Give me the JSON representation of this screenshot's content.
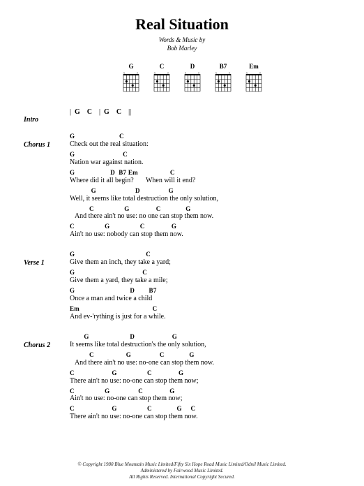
{
  "title": {
    "text": "Real Situation",
    "fontsize": 22
  },
  "byline": {
    "text": "Words & Music by",
    "fontsize": 9
  },
  "author": {
    "text": "Bob Marley",
    "fontsize": 9
  },
  "chord_diagrams": [
    {
      "name": "G"
    },
    {
      "name": "C"
    },
    {
      "name": "D"
    },
    {
      "name": "B7"
    },
    {
      "name": "Em"
    }
  ],
  "sections": [
    {
      "label": "Intro",
      "type": "intro",
      "intro_text": "|  G    C    |  G    C    ||"
    },
    {
      "label": "Chorus 1",
      "type": "lyrics",
      "lines": [
        {
          "chords": "G                         C",
          "lyrics": "Check out the real situation:"
        },
        {
          "chords": "G                           C",
          "lyrics": "Nation war against nation."
        },
        {
          "chords": "G                    D  B7 Em                  C",
          "lyrics": "Where did it all begin?       When will it end?"
        },
        {
          "chords": "            G                      D                G",
          "lyrics": "Well, it seems like total destruction the only solution,"
        },
        {
          "chords": "           C                 G               C              G",
          "lyrics": "   And there ain't no use: no one can stop them now."
        },
        {
          "chords": "C                 G                 C               G",
          "lyrics": "Ain't no use: nobody can stop them now."
        }
      ]
    },
    {
      "label": "Verse 1",
      "type": "lyrics",
      "lines": [
        {
          "chords": "G                                        C",
          "lyrics": "Give them an inch, they take a yard;"
        },
        {
          "chords": "G                                      C",
          "lyrics": "Give them a yard, they take a mile;"
        },
        {
          "chords": "G                               D        B7",
          "lyrics": "Once a man and twice a child"
        },
        {
          "chords": "Em                                         C",
          "lyrics": "And ev-'rything is just for a while."
        }
      ]
    },
    {
      "label": "Chorus 2",
      "type": "lyrics",
      "lines": [
        {
          "chords": "        G                       D                     G",
          "lyrics": "It seems like total destruction's the only solution,"
        },
        {
          "chords": "           C                  G                C              G",
          "lyrics": "   And there ain't no use: no-one can stop them now."
        },
        {
          "chords": "C                     G                 C               G",
          "lyrics": "There ain't no use: no-one can stop them now;"
        },
        {
          "chords": "C                 G                C               G",
          "lyrics": "Ain't no use: no-one can stop them now;"
        },
        {
          "chords": "C                     G                 C              G     C",
          "lyrics": "There ain't no use: no-one can stop them now."
        }
      ]
    }
  ],
  "copyright": {
    "line1": "© Copyright 1980 Blue Mountain Music Limited/Fifty Six Hope Road Music Limited/Odnil Music Limited.",
    "line2": "Administered by Fairwood Music Limited.",
    "line3": "All Rights Reserved. International Copyright Secured."
  },
  "style": {
    "background": "#ffffff",
    "text_color": "#000000",
    "grid_color": "#000000"
  }
}
